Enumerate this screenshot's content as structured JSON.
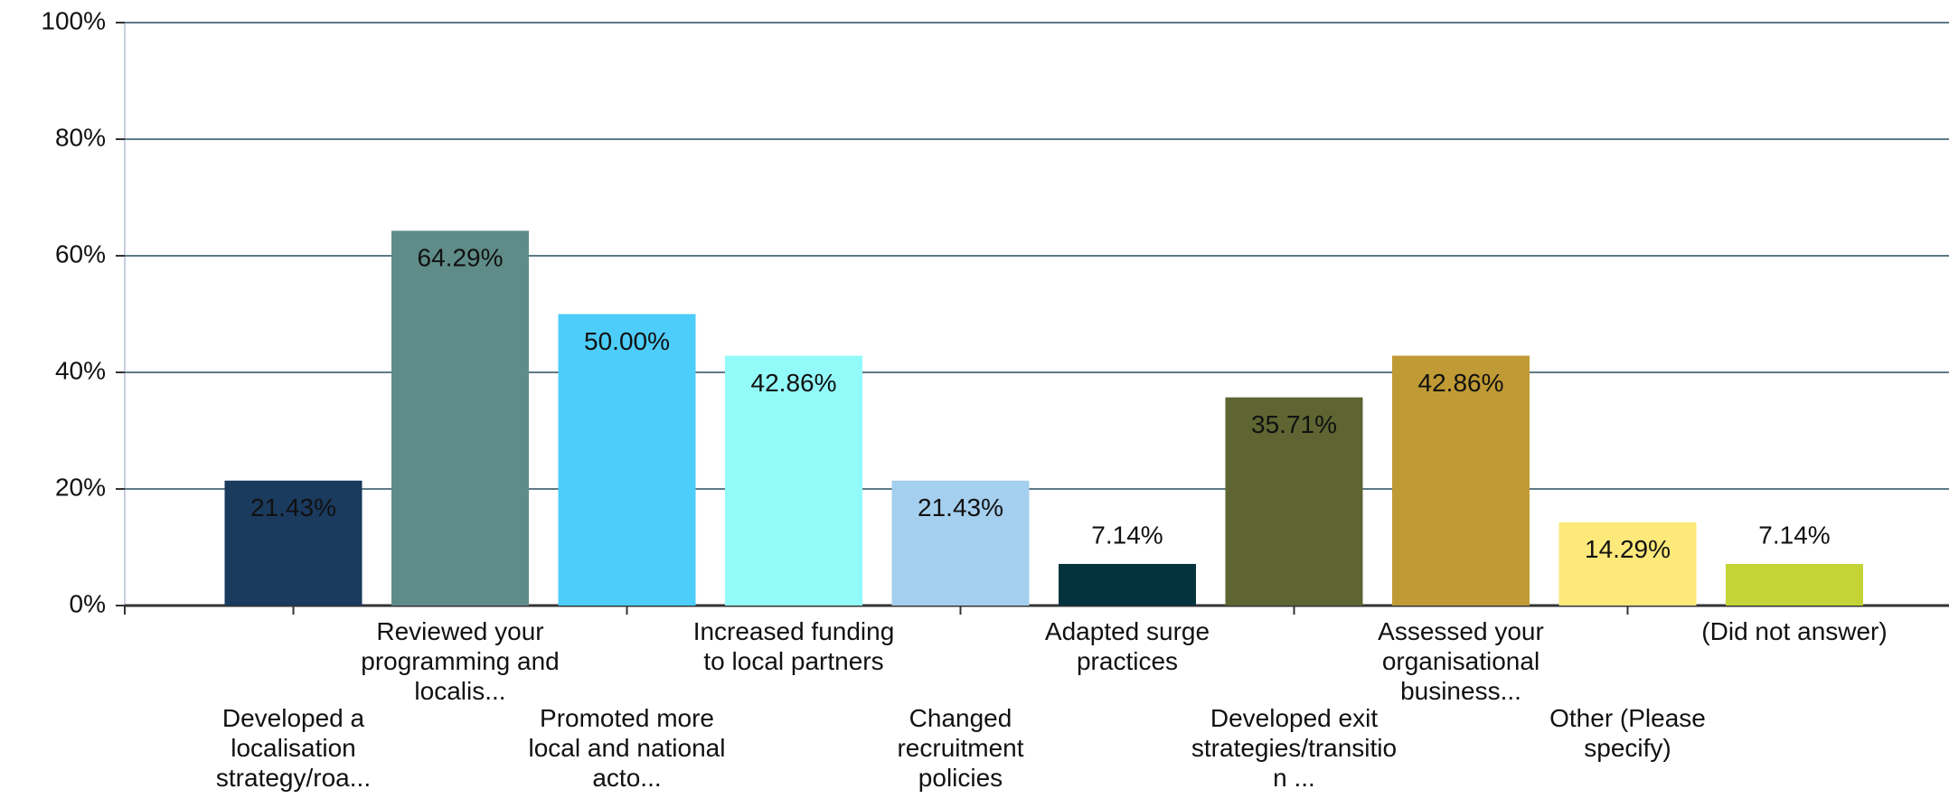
{
  "chart_data": {
    "type": "bar",
    "categories": [
      "Developed a\nlocalisation\nstrategy/roa...",
      "Reviewed your\nprogramming and\nlocalis...",
      "Promoted more\nlocal and national\nacto...",
      "Increased funding\nto local partners",
      "Changed\nrecruitment\npolicies",
      "Adapted surge\npractices",
      "Developed exit\nstrategies/transitio\nn ...",
      "Assessed your\norganisational\nbusiness...",
      "Other (Please\nspecify)",
      "(Did not answer)"
    ],
    "values": [
      21.43,
      64.29,
      50,
      42.86,
      21.43,
      7.14,
      35.71,
      42.86,
      14.29,
      7.14
    ],
    "value_labels": [
      "21.43%",
      "64.29%",
      "50.00%",
      "42.86%",
      "21.43%",
      "7.14%",
      "35.71%",
      "42.86%",
      "14.29%",
      "7.14%"
    ],
    "colors": [
      "#1a3a5e",
      "#5f8c88",
      "#4dcdfa",
      "#93fafa",
      "#a5cfee",
      "#05333d",
      "#5e6532",
      "#c09a35",
      "#fde97a",
      "#c4d336"
    ],
    "ylim": [
      0,
      100
    ],
    "yticks": [
      {
        "value": 0,
        "label": "0%"
      },
      {
        "value": 20,
        "label": "20%"
      },
      {
        "value": 40,
        "label": "40%"
      },
      {
        "value": 60,
        "label": "60%"
      },
      {
        "value": 80,
        "label": "80%"
      },
      {
        "value": 100,
        "label": "100%"
      }
    ],
    "grid": true
  }
}
